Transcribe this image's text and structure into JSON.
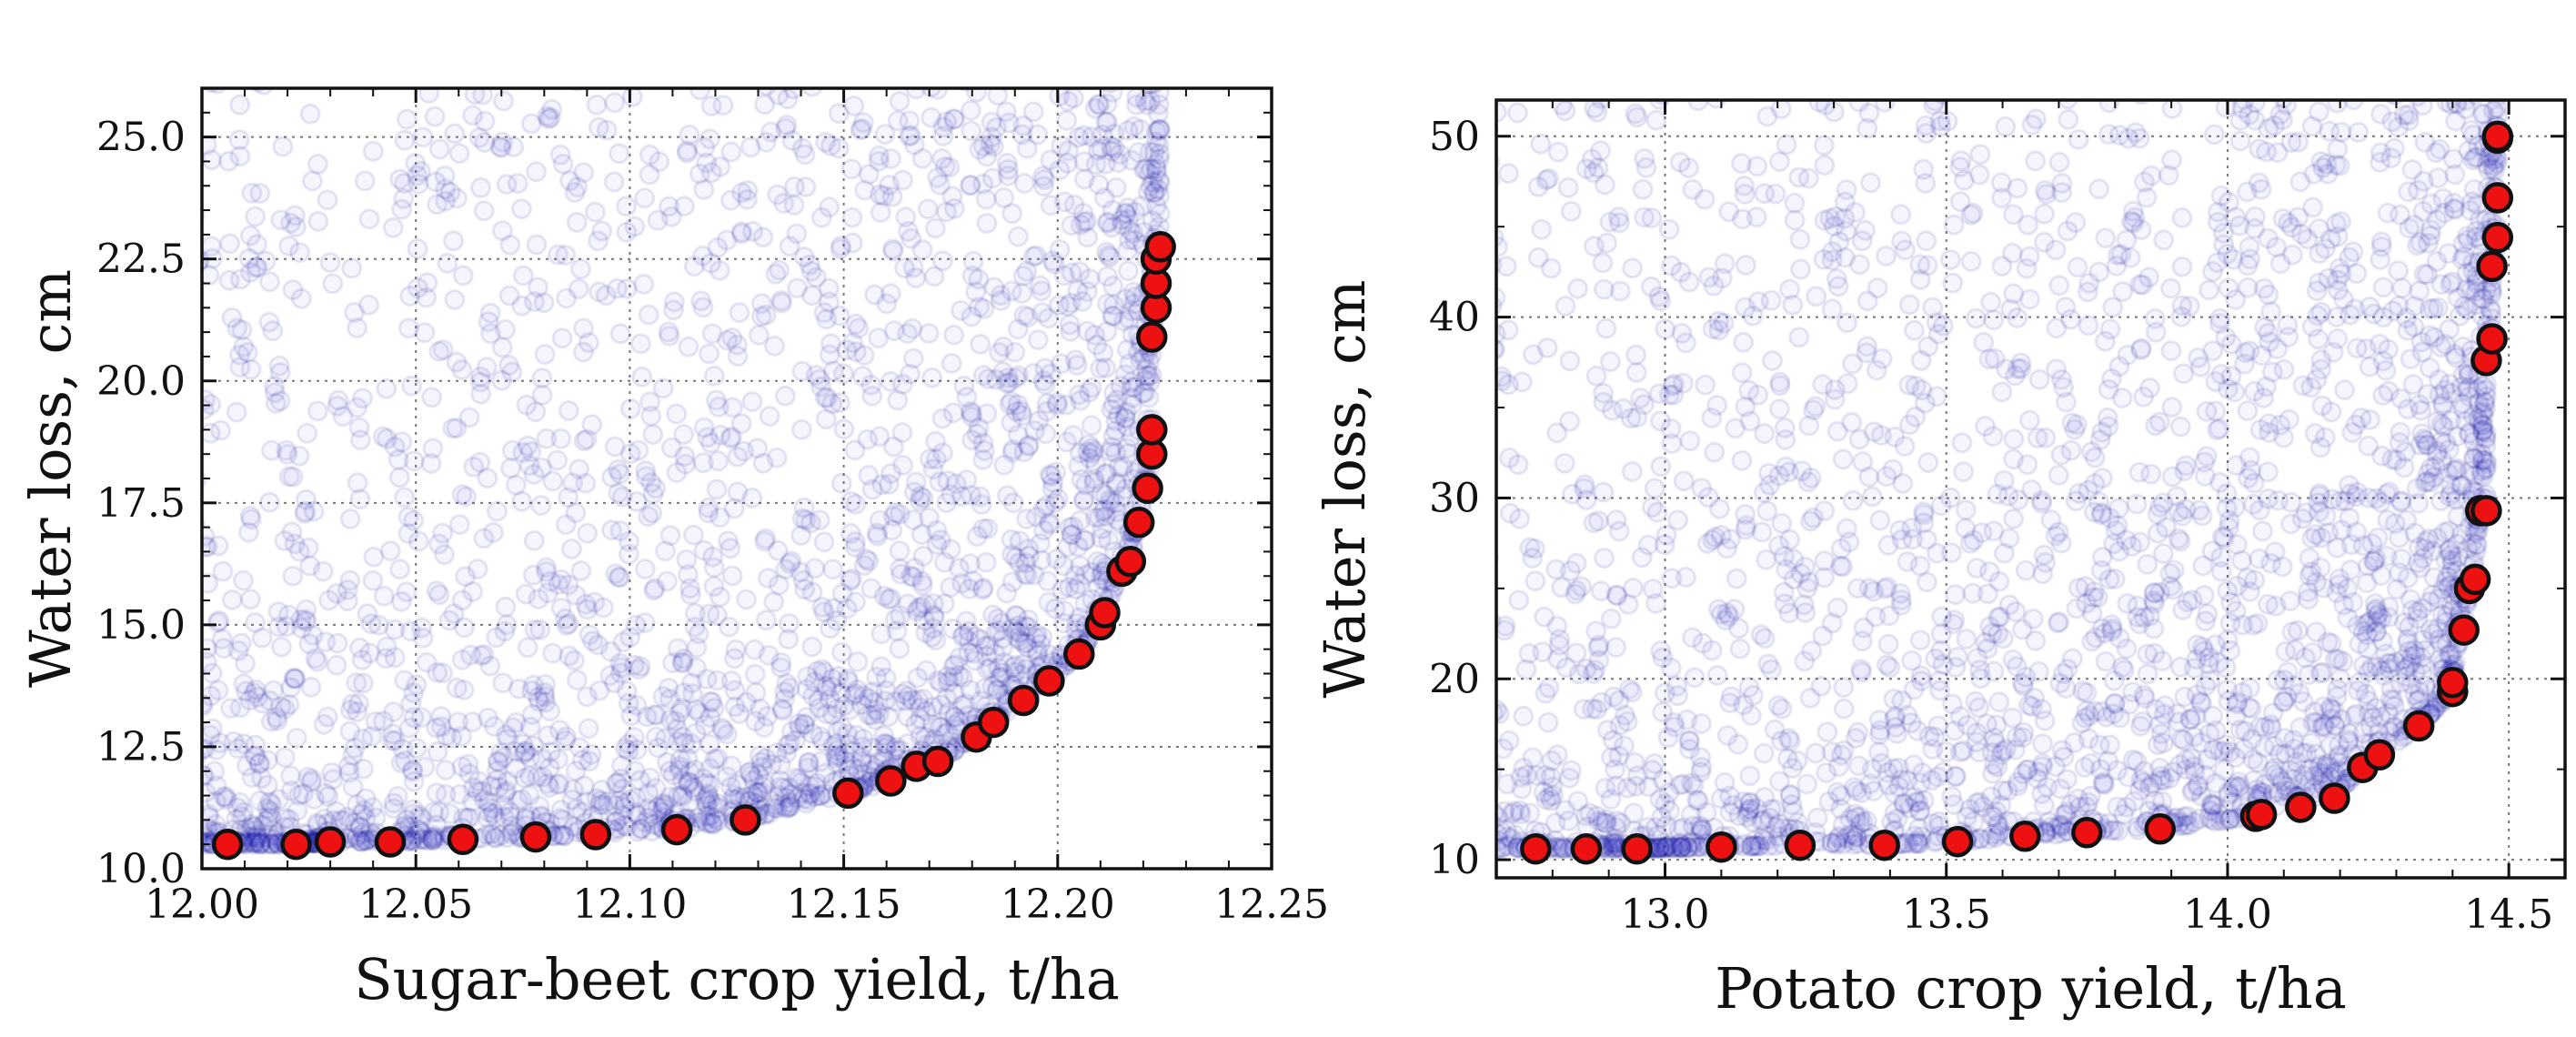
{
  "chart_data": [
    {
      "type": "scatter",
      "title": "",
      "xlabel": "Sugar-beet crop yield, t/ha",
      "ylabel": "Water loss, cm",
      "xlim": [
        12.0,
        12.25
      ],
      "ylim": [
        10.0,
        26.0
      ],
      "xticks": [
        "12.00",
        "12.05",
        "12.10",
        "12.15",
        "12.20",
        "12.25"
      ],
      "yticks": [
        "10.0",
        "12.5",
        "15.0",
        "17.5",
        "20.0",
        "22.5",
        "25.0"
      ],
      "grid": true,
      "legend": "none",
      "colors": {
        "cloud": "#1e1ec8",
        "front_fill": "#ee1111",
        "front_edge": "#111111"
      },
      "series": [
        {
          "role": "pareto-front",
          "x": [
            12.006,
            12.022,
            12.03,
            12.044,
            12.061,
            12.078,
            12.092,
            12.111,
            12.127,
            12.151,
            12.161,
            12.167,
            12.172,
            12.181,
            12.185,
            12.192,
            12.198,
            12.205,
            12.21,
            12.211,
            12.215,
            12.217,
            12.219,
            12.221,
            12.222,
            12.222,
            12.222,
            12.223,
            12.223,
            12.223,
            12.224
          ],
          "y": [
            10.5,
            10.5,
            10.55,
            10.55,
            10.6,
            10.65,
            10.7,
            10.8,
            11.0,
            11.55,
            11.8,
            12.1,
            12.2,
            12.7,
            13.0,
            13.45,
            13.85,
            14.4,
            15.0,
            15.25,
            16.1,
            16.3,
            17.1,
            17.8,
            18.5,
            19.0,
            20.9,
            21.5,
            22.0,
            22.5,
            22.75
          ]
        }
      ]
    },
    {
      "type": "scatter",
      "title": "",
      "xlabel": "Potato crop yield, t/ha",
      "ylabel": "Water loss, cm",
      "xlim": [
        12.7,
        14.6
      ],
      "ylim": [
        9,
        52
      ],
      "xticks": [
        "13.0",
        "13.5",
        "14.0",
        "14.5"
      ],
      "yticks": [
        "10",
        "20",
        "30",
        "40",
        "50"
      ],
      "grid": true,
      "legend": "none",
      "colors": {
        "cloud": "#1e1ec8",
        "front_fill": "#ee1111",
        "front_edge": "#111111"
      },
      "series": [
        {
          "role": "pareto-front",
          "x": [
            12.77,
            12.86,
            12.95,
            13.1,
            13.24,
            13.39,
            13.52,
            13.64,
            13.75,
            13.88,
            14.05,
            14.06,
            14.13,
            14.19,
            14.24,
            14.27,
            14.34,
            14.4,
            14.4,
            14.42,
            14.43,
            14.44,
            14.45,
            14.46,
            14.46,
            14.47,
            14.47,
            14.48,
            14.48,
            14.48,
            14.48
          ],
          "y": [
            10.6,
            10.6,
            10.6,
            10.7,
            10.8,
            10.8,
            11.0,
            11.3,
            11.5,
            11.7,
            12.4,
            12.5,
            12.9,
            13.4,
            15.1,
            15.8,
            17.4,
            19.3,
            19.8,
            22.7,
            25.0,
            25.5,
            29.3,
            29.3,
            37.6,
            38.8,
            42.8,
            44.4,
            46.6,
            49.9,
            50.0
          ]
        }
      ]
    }
  ]
}
